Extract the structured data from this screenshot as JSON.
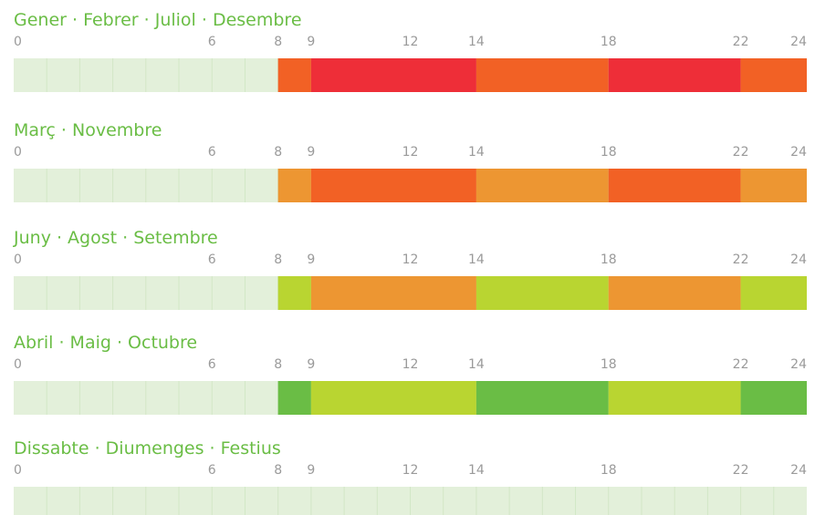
{
  "chart_data": [
    {
      "type": "timeline",
      "title": "Gener · Febrer · Juliol · Desembre",
      "xlim": [
        0,
        24
      ],
      "xticks": [
        0,
        6,
        8,
        9,
        12,
        14,
        18,
        22,
        24
      ],
      "background": "#e3f0da",
      "segments": [
        {
          "start": 8,
          "end": 9,
          "color": "#f26125"
        },
        {
          "start": 9,
          "end": 14,
          "color": "#ee2e38"
        },
        {
          "start": 14,
          "end": 18,
          "color": "#f26125"
        },
        {
          "start": 18,
          "end": 22,
          "color": "#ee2e38"
        },
        {
          "start": 22,
          "end": 24,
          "color": "#f26125"
        }
      ]
    },
    {
      "type": "timeline",
      "title": "Març · Novembre",
      "xlim": [
        0,
        24
      ],
      "xticks": [
        0,
        6,
        8,
        9,
        12,
        14,
        18,
        22,
        24
      ],
      "background": "#e3f0da",
      "segments": [
        {
          "start": 8,
          "end": 9,
          "color": "#ed9632"
        },
        {
          "start": 9,
          "end": 14,
          "color": "#f26125"
        },
        {
          "start": 14,
          "end": 18,
          "color": "#ed9632"
        },
        {
          "start": 18,
          "end": 22,
          "color": "#f26125"
        },
        {
          "start": 22,
          "end": 24,
          "color": "#ed9632"
        }
      ]
    },
    {
      "type": "timeline",
      "title": "Juny · Agost · Setembre",
      "xlim": [
        0,
        24
      ],
      "xticks": [
        0,
        6,
        8,
        9,
        12,
        14,
        18,
        22,
        24
      ],
      "background": "#e3f0da",
      "segments": [
        {
          "start": 8,
          "end": 9,
          "color": "#b9d531"
        },
        {
          "start": 9,
          "end": 14,
          "color": "#ed9632"
        },
        {
          "start": 14,
          "end": 18,
          "color": "#b9d531"
        },
        {
          "start": 18,
          "end": 22,
          "color": "#ed9632"
        },
        {
          "start": 22,
          "end": 24,
          "color": "#b9d531"
        }
      ]
    },
    {
      "type": "timeline",
      "title": "Abril · Maig · Octubre",
      "xlim": [
        0,
        24
      ],
      "xticks": [
        0,
        6,
        8,
        9,
        12,
        14,
        18,
        22,
        24
      ],
      "background": "#e3f0da",
      "segments": [
        {
          "start": 8,
          "end": 9,
          "color": "#6abd45"
        },
        {
          "start": 9,
          "end": 14,
          "color": "#b9d531"
        },
        {
          "start": 14,
          "end": 18,
          "color": "#6abd45"
        },
        {
          "start": 18,
          "end": 22,
          "color": "#b9d531"
        },
        {
          "start": 22,
          "end": 24,
          "color": "#6abd45"
        }
      ]
    },
    {
      "type": "timeline",
      "title": "Dissabte · Diumenges · Festius",
      "xlim": [
        0,
        24
      ],
      "xticks": [
        0,
        6,
        8,
        9,
        12,
        14,
        18,
        22,
        24
      ],
      "background": "#e3f0da",
      "segments": []
    }
  ]
}
